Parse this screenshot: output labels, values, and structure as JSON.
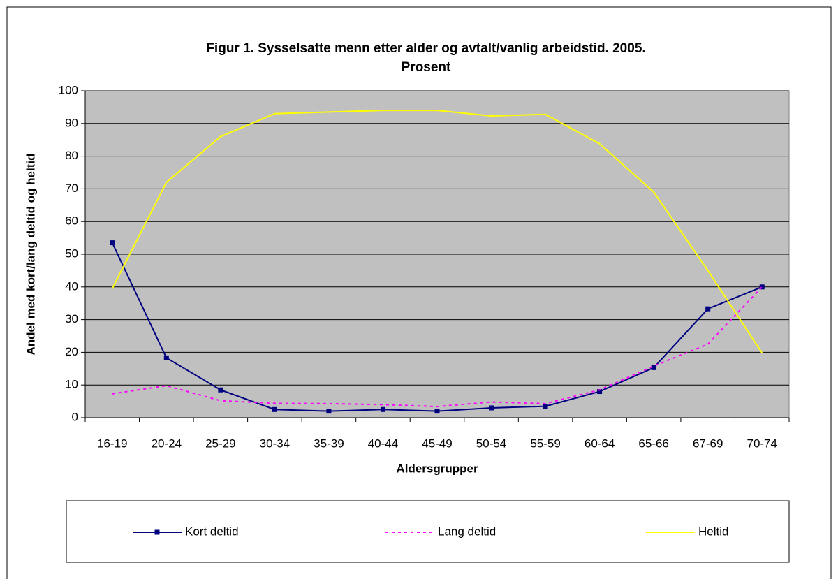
{
  "chart_data": {
    "type": "line",
    "title": [
      "Figur 1. Sysselsatte menn etter alder og avtalt/vanlig arbeidstid. 2005.",
      "Prosent"
    ],
    "xlabel": "Aldersgrupper",
    "ylabel": "Andel med kort/lang deltid og heltid",
    "categories": [
      "16-19",
      "20-24",
      "25-29",
      "30-34",
      "35-39",
      "40-44",
      "45-49",
      "50-54",
      "55-59",
      "60-64",
      "65-66",
      "67-69",
      "70-74"
    ],
    "series": [
      {
        "name": "Kort deltid",
        "color": "#000080",
        "marker": "square",
        "dash": "solid",
        "values": [
          53.5,
          18.3,
          8.5,
          2.5,
          2,
          2.5,
          2,
          3,
          3.5,
          8,
          15.3,
          33.3,
          40
        ]
      },
      {
        "name": "Lang deltid",
        "color": "#ff00ff",
        "marker": "none",
        "dash": "dashed",
        "values": [
          7.3,
          9.8,
          5.2,
          4.4,
          4.3,
          4,
          3.4,
          4.8,
          4.3,
          8.5,
          15.8,
          22.5,
          40
        ]
      },
      {
        "name": "Heltid",
        "color": "#ffff00",
        "marker": "none",
        "dash": "solid",
        "values": [
          39.5,
          72,
          86,
          93,
          93.5,
          94,
          94,
          92.3,
          92.8,
          83.8,
          69,
          45,
          19.8
        ]
      }
    ],
    "ylim": [
      0,
      100
    ],
    "yticks": [
      0,
      10,
      20,
      30,
      40,
      50,
      60,
      70,
      80,
      90,
      100
    ],
    "grid": true,
    "plot_background": "#c0c0c0",
    "legend": "bottom"
  }
}
